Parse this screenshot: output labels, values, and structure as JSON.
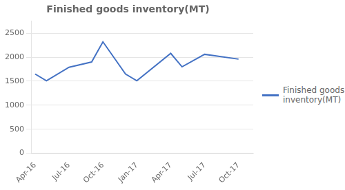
{
  "chart_data": {
    "type": "line",
    "title": "Finished goods inventory(MT)",
    "x": [
      0,
      1,
      3,
      5,
      6,
      8,
      9,
      12,
      13,
      15,
      18
    ],
    "series": [
      {
        "name": "Finished goods\ninventory(MT)",
        "color": "#4472C4",
        "values": [
          1650,
          1510,
          1790,
          1900,
          2320,
          1650,
          1510,
          2080,
          1800,
          2060,
          1960
        ]
      }
    ],
    "xlim": [
      -0.3,
      19.3
    ],
    "xticks": [
      {
        "value": 0,
        "label": "Apr-16"
      },
      {
        "value": 3,
        "label": "Jul-16"
      },
      {
        "value": 6,
        "label": "Oct-16"
      },
      {
        "value": 9,
        "label": "Jan-17"
      },
      {
        "value": 12,
        "label": "Apr-17"
      },
      {
        "value": 15,
        "label": "Jul-17"
      },
      {
        "value": 18,
        "label": "Oct-17"
      }
    ],
    "ylim": [
      0,
      2750
    ],
    "yticks": [
      0,
      500,
      1000,
      1500,
      2000,
      2500
    ],
    "grid": "y",
    "legend": "right"
  }
}
